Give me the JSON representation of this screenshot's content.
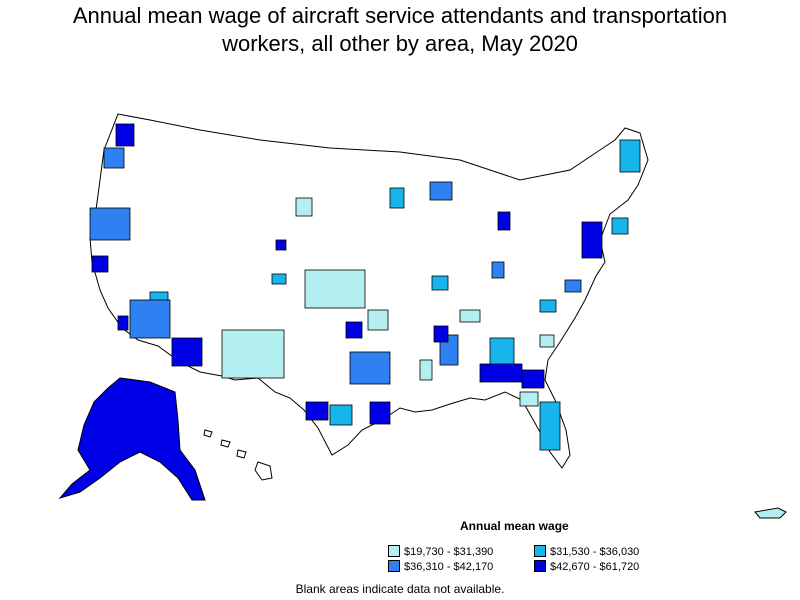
{
  "title_lines": [
    "Annual mean wage of aircraft service attendants and transportation",
    "workers, all other by area, May 2020"
  ],
  "legend": {
    "title": "Annual mean wage",
    "items": [
      {
        "label": "$19,730 - $31,390",
        "color": "#b3eef0"
      },
      {
        "label": "$31,530 - $36,030",
        "color": "#18b4ec"
      },
      {
        "label": "$36,310 - $42,170",
        "color": "#2f80f0"
      },
      {
        "label": "$42,670 - $61,720",
        "color": "#0000e6"
      }
    ]
  },
  "note": "Blank areas indicate data not available."
}
